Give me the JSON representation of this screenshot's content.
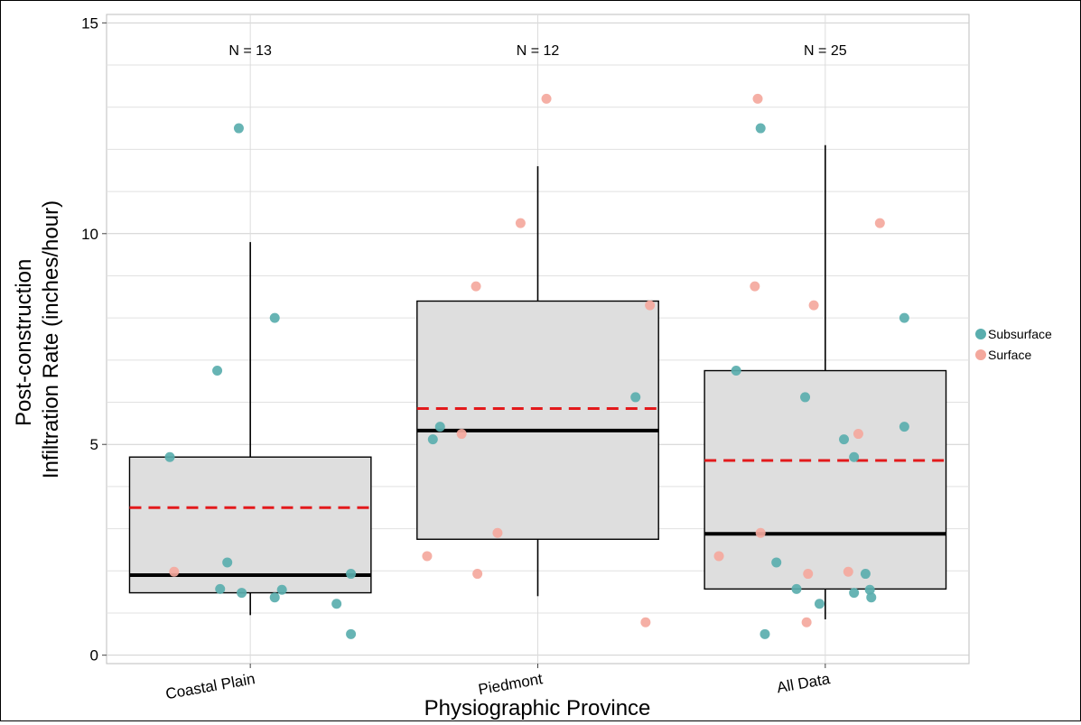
{
  "chart_data": {
    "type": "boxplot",
    "xlabel": "Physiographic Province",
    "ylabel_lines": [
      "Post-construction",
      "Infiltration Rate (inches/hour)"
    ],
    "ylim": [
      -0.2,
      15.2
    ],
    "yticks": [
      0,
      5,
      10,
      15
    ],
    "grid": true,
    "legend_position": "right",
    "categories": [
      "Coastal Plain",
      "Piedmont",
      "All Data"
    ],
    "n_labels": [
      "N = 13",
      "N = 12",
      "N = 25"
    ],
    "boxes": [
      {
        "category": "Coastal Plain",
        "whisker_low": 0.95,
        "q1": 1.48,
        "median": 1.9,
        "q3": 4.7,
        "whisker_high": 9.8,
        "mean": 3.5
      },
      {
        "category": "Piedmont",
        "whisker_low": 1.4,
        "q1": 2.75,
        "median": 5.33,
        "q3": 8.4,
        "whisker_high": 11.6,
        "mean": 5.85
      },
      {
        "category": "All Data",
        "whisker_low": 0.85,
        "q1": 1.57,
        "median": 2.88,
        "q3": 6.75,
        "whisker_high": 12.1,
        "mean": 4.62
      }
    ],
    "series": [
      {
        "name": "Subsurface",
        "color": "#5aaeae",
        "points": [
          {
            "category": "Coastal Plain",
            "jitter": -0.08,
            "y": 12.5
          },
          {
            "category": "Coastal Plain",
            "jitter": 0.17,
            "y": 8.0
          },
          {
            "category": "Coastal Plain",
            "jitter": -0.23,
            "y": 6.75
          },
          {
            "category": "Coastal Plain",
            "jitter": -0.56,
            "y": 4.7
          },
          {
            "category": "Coastal Plain",
            "jitter": -0.16,
            "y": 2.2
          },
          {
            "category": "Coastal Plain",
            "jitter": 0.7,
            "y": 1.93
          },
          {
            "category": "Coastal Plain",
            "jitter": -0.21,
            "y": 1.57
          },
          {
            "category": "Coastal Plain",
            "jitter": 0.22,
            "y": 1.55
          },
          {
            "category": "Coastal Plain",
            "jitter": -0.06,
            "y": 1.48
          },
          {
            "category": "Coastal Plain",
            "jitter": 0.17,
            "y": 1.37
          },
          {
            "category": "Coastal Plain",
            "jitter": 0.6,
            "y": 1.22
          },
          {
            "category": "Coastal Plain",
            "jitter": 0.7,
            "y": 0.5
          },
          {
            "category": "Piedmont",
            "jitter": 0.68,
            "y": 6.12
          },
          {
            "category": "Piedmont",
            "jitter": -0.68,
            "y": 5.42
          },
          {
            "category": "Piedmont",
            "jitter": -0.73,
            "y": 5.12
          },
          {
            "category": "All Data",
            "jitter": -0.45,
            "y": 12.5
          },
          {
            "category": "All Data",
            "jitter": 0.55,
            "y": 8.0
          },
          {
            "category": "All Data",
            "jitter": -0.62,
            "y": 6.75
          },
          {
            "category": "All Data",
            "jitter": -0.14,
            "y": 6.12
          },
          {
            "category": "All Data",
            "jitter": 0.55,
            "y": 5.42
          },
          {
            "category": "All Data",
            "jitter": 0.13,
            "y": 5.12
          },
          {
            "category": "All Data",
            "jitter": 0.2,
            "y": 4.7
          },
          {
            "category": "All Data",
            "jitter": -0.34,
            "y": 2.2
          },
          {
            "category": "All Data",
            "jitter": 0.28,
            "y": 1.93
          },
          {
            "category": "All Data",
            "jitter": -0.2,
            "y": 1.57
          },
          {
            "category": "All Data",
            "jitter": 0.31,
            "y": 1.55
          },
          {
            "category": "All Data",
            "jitter": 0.2,
            "y": 1.48
          },
          {
            "category": "All Data",
            "jitter": 0.32,
            "y": 1.37
          },
          {
            "category": "All Data",
            "jitter": -0.04,
            "y": 1.22
          },
          {
            "category": "All Data",
            "jitter": -0.42,
            "y": 0.5
          }
        ]
      },
      {
        "name": "Surface",
        "color": "#f4a89d",
        "points": [
          {
            "category": "Coastal Plain",
            "jitter": -0.53,
            "y": 1.98
          },
          {
            "category": "Piedmont",
            "jitter": 0.06,
            "y": 13.2
          },
          {
            "category": "Piedmont",
            "jitter": -0.12,
            "y": 10.25
          },
          {
            "category": "Piedmont",
            "jitter": -0.43,
            "y": 8.75
          },
          {
            "category": "Piedmont",
            "jitter": 0.78,
            "y": 8.3
          },
          {
            "category": "Piedmont",
            "jitter": -0.53,
            "y": 5.25
          },
          {
            "category": "Piedmont",
            "jitter": -0.28,
            "y": 2.9
          },
          {
            "category": "Piedmont",
            "jitter": -0.77,
            "y": 2.35
          },
          {
            "category": "Piedmont",
            "jitter": -0.42,
            "y": 1.93
          },
          {
            "category": "Piedmont",
            "jitter": 0.75,
            "y": 0.78
          },
          {
            "category": "All Data",
            "jitter": -0.47,
            "y": 13.2
          },
          {
            "category": "All Data",
            "jitter": 0.38,
            "y": 10.25
          },
          {
            "category": "All Data",
            "jitter": -0.49,
            "y": 8.75
          },
          {
            "category": "All Data",
            "jitter": -0.08,
            "y": 8.3
          },
          {
            "category": "All Data",
            "jitter": 0.23,
            "y": 5.25
          },
          {
            "category": "All Data",
            "jitter": -0.45,
            "y": 2.9
          },
          {
            "category": "All Data",
            "jitter": -0.74,
            "y": 2.35
          },
          {
            "category": "All Data",
            "jitter": 0.16,
            "y": 1.98
          },
          {
            "category": "All Data",
            "jitter": -0.12,
            "y": 1.93
          },
          {
            "category": "All Data",
            "jitter": -0.13,
            "y": 0.78
          }
        ]
      }
    ]
  }
}
